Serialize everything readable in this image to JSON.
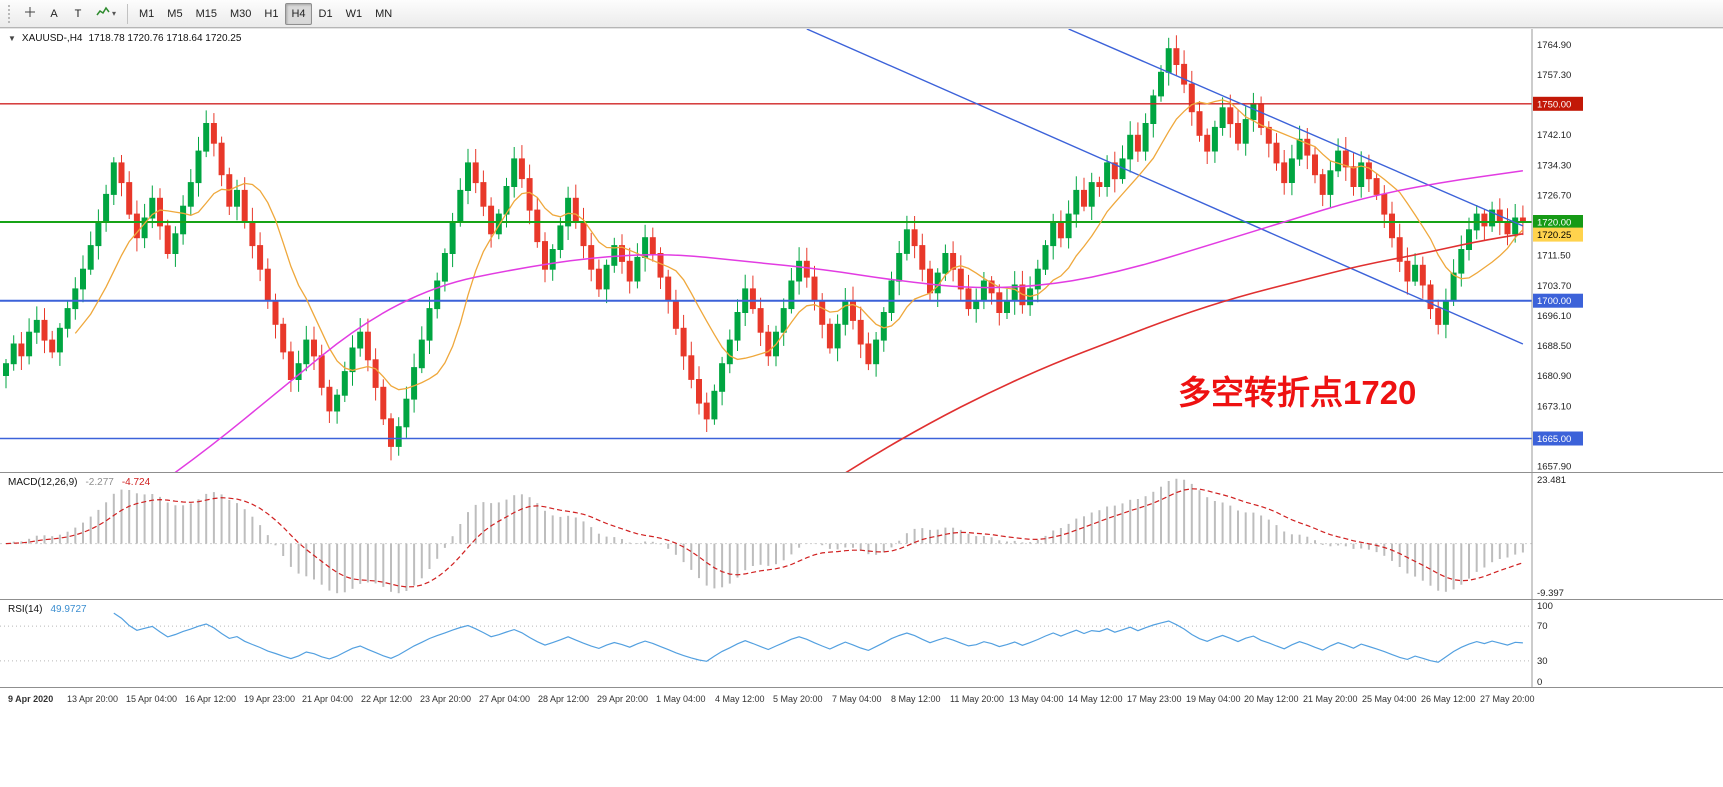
{
  "toolbar": {
    "text_tool": "A",
    "label_tool": "T",
    "timeframes": [
      "M1",
      "M5",
      "M15",
      "M30",
      "H1",
      "H4",
      "D1",
      "W1",
      "MN"
    ],
    "active_timeframe": "H4"
  },
  "chart": {
    "symbol_header": "XAUUSD-,H4",
    "ohlc": "1718.78 1720.76 1718.64 1720.25",
    "annotation": "多空转折点1720",
    "ylim": [
      1656.5,
      1769
    ],
    "colors": {
      "up": "#00a541",
      "down": "#e8382a",
      "trend": "#3c62d9",
      "ma_fast": "#efa83c",
      "ma_mid": "#e23ce2",
      "ma_slow": "#e03030",
      "annotation": "#ee1111",
      "axis_border": "#9a9a9a"
    },
    "levels": [
      {
        "price": 1750,
        "color": "#d02424",
        "w": 1.4
      },
      {
        "price": 1720,
        "color": "#17a317",
        "w": 2
      },
      {
        "price": 1700,
        "color": "#3c62d9",
        "w": 2
      },
      {
        "price": 1665,
        "color": "#3c62d9",
        "w": 1.4
      }
    ],
    "badges": [
      {
        "label": "1750.00",
        "price": 1750,
        "bg": "#c21807",
        "fg": "#ffffff"
      },
      {
        "label": "1720.00",
        "price": 1720,
        "bg": "#169a16",
        "fg": "#ffffff"
      },
      {
        "label": "1720.25",
        "price": 1716.8,
        "bg": "#ffd34d",
        "fg": "#000000"
      },
      {
        "label": "1700.00",
        "price": 1700,
        "bg": "#3c62d9",
        "fg": "#ffffff"
      },
      {
        "label": "1665.00",
        "price": 1665,
        "bg": "#3c62d9",
        "fg": "#ffffff"
      }
    ],
    "y_ticks": [
      {
        "label": "1764.90",
        "price": 1764.9
      },
      {
        "label": "1757.30",
        "price": 1757.3
      },
      {
        "label": "1742.10",
        "price": 1742.1
      },
      {
        "label": "1734.30",
        "price": 1734.3
      },
      {
        "label": "1726.70",
        "price": 1726.7
      },
      {
        "label": "1711.50",
        "price": 1711.5
      },
      {
        "label": "1703.70",
        "price": 1703.7
      },
      {
        "label": "1696.10",
        "price": 1696.1
      },
      {
        "label": "1688.50",
        "price": 1688.5
      },
      {
        "label": "1680.90",
        "price": 1680.9
      },
      {
        "label": "1673.10",
        "price": 1673.1
      },
      {
        "label": "1657.90",
        "price": 1657.9
      }
    ],
    "trendlines": [
      {
        "i1": 104,
        "p1": 1769,
        "i2": 197,
        "p2": 1689
      },
      {
        "i1": 138,
        "p1": 1769,
        "i2": 197,
        "p2": 1719
      }
    ],
    "ma_fast_period": 10,
    "ma_mid_anchors": [
      [
        0,
        1630
      ],
      [
        8,
        1636
      ],
      [
        16,
        1648
      ],
      [
        26,
        1662
      ],
      [
        36,
        1678
      ],
      [
        46,
        1694
      ],
      [
        56,
        1704
      ],
      [
        66,
        1708
      ],
      [
        76,
        1711
      ],
      [
        86,
        1712
      ],
      [
        96,
        1710
      ],
      [
        106,
        1708
      ],
      [
        116,
        1705
      ],
      [
        126,
        1703
      ],
      [
        136,
        1704
      ],
      [
        146,
        1708
      ],
      [
        156,
        1714
      ],
      [
        166,
        1720
      ],
      [
        176,
        1726
      ],
      [
        186,
        1730
      ],
      [
        197,
        1733
      ]
    ],
    "ma_slow_anchors": [
      [
        96,
        1640
      ],
      [
        104,
        1650
      ],
      [
        112,
        1660
      ],
      [
        120,
        1669
      ],
      [
        128,
        1677
      ],
      [
        136,
        1684
      ],
      [
        144,
        1690
      ],
      [
        152,
        1696
      ],
      [
        160,
        1701
      ],
      [
        168,
        1705
      ],
      [
        176,
        1709
      ],
      [
        184,
        1712
      ],
      [
        191,
        1715
      ],
      [
        197,
        1717
      ]
    ],
    "open_first": 1681,
    "closes": [
      1684,
      1689,
      1686,
      1692,
      1695,
      1690,
      1687,
      1693,
      1698,
      1703,
      1708,
      1714,
      1720,
      1727,
      1735,
      1730,
      1722,
      1716,
      1721,
      1726,
      1719,
      1712,
      1717,
      1724,
      1730,
      1738,
      1745,
      1740,
      1732,
      1724,
      1728,
      1720,
      1714,
      1708,
      1700,
      1694,
      1687,
      1680,
      1684,
      1690,
      1686,
      1678,
      1672,
      1676,
      1682,
      1688,
      1692,
      1685,
      1678,
      1670,
      1663,
      1668,
      1675,
      1683,
      1690,
      1698,
      1705,
      1712,
      1720,
      1728,
      1735,
      1730,
      1724,
      1717,
      1722,
      1729,
      1736,
      1731,
      1723,
      1715,
      1708,
      1713,
      1719,
      1726,
      1720,
      1714,
      1708,
      1703,
      1709,
      1714,
      1710,
      1705,
      1711,
      1716,
      1712,
      1706,
      1700,
      1693,
      1686,
      1680,
      1674,
      1670,
      1677,
      1684,
      1690,
      1697,
      1703,
      1698,
      1692,
      1686,
      1692,
      1698,
      1705,
      1710,
      1706,
      1700,
      1694,
      1688,
      1694,
      1700,
      1695,
      1689,
      1684,
      1690,
      1697,
      1705,
      1712,
      1718,
      1714,
      1708,
      1702,
      1707,
      1712,
      1708,
      1703,
      1698,
      1700,
      1705,
      1702,
      1697,
      1700,
      1704,
      1699,
      1703,
      1708,
      1714,
      1720,
      1716,
      1722,
      1728,
      1724,
      1730,
      1729,
      1735,
      1731,
      1736,
      1742,
      1738,
      1745,
      1752,
      1758,
      1764,
      1760,
      1755,
      1748,
      1742,
      1738,
      1744,
      1749,
      1745,
      1740,
      1746,
      1750,
      1744,
      1740,
      1735,
      1730,
      1736,
      1741,
      1737,
      1732,
      1727,
      1733,
      1738,
      1734,
      1729,
      1735,
      1731,
      1727,
      1722,
      1716,
      1710,
      1705,
      1709,
      1704,
      1698,
      1694,
      1700,
      1707,
      1713,
      1718,
      1722,
      1719,
      1723,
      1720,
      1717,
      1721,
      1720.25
    ],
    "time_labels": [
      "9 Apr 2020",
      "13 Apr 20:00",
      "15 Apr 04:00",
      "16 Apr 12:00",
      "19 Apr 23:00",
      "21 Apr 04:00",
      "22 Apr 12:00",
      "23 Apr 20:00",
      "27 Apr 04:00",
      "28 Apr 12:00",
      "29 Apr 20:00",
      "1 May 04:00",
      "4 May 12:00",
      "5 May 20:00",
      "7 May 04:00",
      "8 May 12:00",
      "11 May 20:00",
      "13 May 04:00",
      "14 May 12:00",
      "17 May 23:00",
      "19 May 04:00",
      "20 May 12:00",
      "21 May 20:00",
      "25 May 04:00",
      "26 May 12:00",
      "27 May 20:00"
    ]
  },
  "macd": {
    "label": "MACD(12,26,9)",
    "value1": "-2.277",
    "value2": "-4.724",
    "ymax_label": "23.481",
    "ymin_label": "-9.397",
    "bar_color": "#bdbdbd",
    "signal_color": "#d02020",
    "fast": 12,
    "slow": 26,
    "signal": 9
  },
  "rsi": {
    "label": "RSI(14)",
    "value": "49.9727",
    "period": 14,
    "line_color": "#53a0e0",
    "levels": [
      70,
      30
    ],
    "axis_labels": [
      "100",
      "70",
      "30",
      "0"
    ]
  }
}
